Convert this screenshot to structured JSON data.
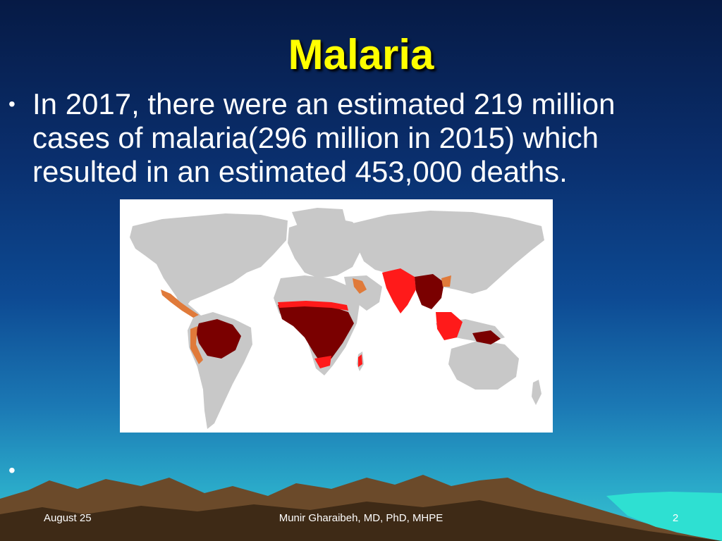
{
  "slide": {
    "title": "Malaria",
    "bullet_text": "In 2017, there were an estimated 219 million cases of malaria(296 million in 2015) which resulted in an estimated 453,000 deaths.",
    "empty_bullet": "•",
    "bullet_symbol": "•"
  },
  "map": {
    "colors": {
      "background": "#ffffff",
      "land_no_malaria": "#c8c8c8",
      "high_risk": "#7a0000",
      "moderate_risk": "#ff1a1a",
      "low_risk": "#e07a3a"
    }
  },
  "footer": {
    "date": "August 25",
    "author": "Munir Gharaibeh, MD, PhD, MHPE",
    "page_number": "2"
  }
}
